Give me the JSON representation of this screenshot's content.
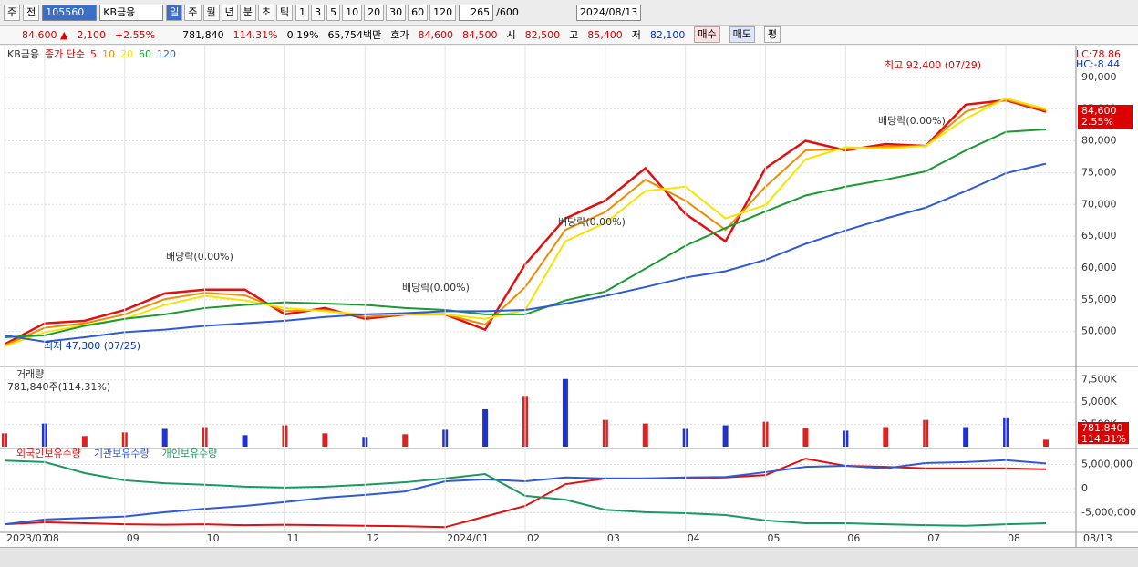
{
  "toolbar": {
    "market": "주",
    "prev": "전",
    "code": "105560",
    "name": "KB금융",
    "periods": [
      "일",
      "주",
      "월",
      "년",
      "분",
      "초",
      "틱"
    ],
    "minutes": [
      "1",
      "3",
      "5",
      "10",
      "20",
      "30",
      "60",
      "120"
    ],
    "count": "265",
    "max": "/600",
    "date": "2024/08/13"
  },
  "quote": {
    "price": "84,600 ▲",
    "change": "2,100",
    "rate": "+2.55%",
    "volume": "781,840",
    "vol_ratio": "114.31%",
    "turnover": "0.19%",
    "amount": "65,754백만",
    "ask_label": "호가",
    "ask": "84,600",
    "bid": "84,500",
    "open_label": "시",
    "open": "82,500",
    "high_label": "고",
    "high": "85,400",
    "low_label": "저",
    "low": "82,100",
    "buy": "매수",
    "sell": "매도",
    "avg": "평"
  },
  "axis_end": "08/13",
  "chart_data": [
    {
      "type": "line",
      "name": "KB금융",
      "method": "종가 단순",
      "categories": [
        "2023/07",
        "08",
        null,
        "09",
        null,
        "10",
        null,
        "11",
        null,
        "12",
        null,
        "2024/01",
        null,
        "02",
        null,
        "03",
        null,
        "04",
        null,
        "05",
        null,
        "06",
        null,
        "07",
        null,
        "08",
        null
      ],
      "series": [
        {
          "name": "5",
          "color": "#e01010",
          "values": [
            48000,
            51300,
            51700,
            53400,
            56000,
            56600,
            56600,
            52700,
            53700,
            52000,
            52700,
            52700,
            50300,
            60600,
            67800,
            70600,
            75700,
            68500,
            64200,
            75700,
            80000,
            78500,
            79500,
            79200,
            85700,
            86400,
            84600
          ]
        },
        {
          "name": "10",
          "color": "#f08a00",
          "values": [
            47800,
            50600,
            51300,
            52700,
            55100,
            56100,
            55700,
            53200,
            53400,
            52300,
            52700,
            52700,
            51100,
            57000,
            66000,
            68800,
            73900,
            70600,
            66000,
            72800,
            78500,
            78700,
            79100,
            79200,
            84600,
            86500,
            84800
          ]
        },
        {
          "name": "20",
          "color": "#f4e600",
          "values": [
            47700,
            49900,
            51000,
            52000,
            54200,
            55600,
            54900,
            53700,
            53200,
            52700,
            52700,
            52700,
            52000,
            53400,
            64200,
            67100,
            72100,
            72800,
            67800,
            69900,
            77100,
            79000,
            78800,
            79200,
            83500,
            86700,
            85000
          ]
        },
        {
          "name": "60",
          "color": "#1a9a30",
          "values": [
            49100,
            49400,
            50900,
            52000,
            52700,
            53700,
            54200,
            54600,
            54400,
            54200,
            53700,
            53400,
            52700,
            52700,
            54900,
            56300,
            59900,
            63500,
            66300,
            68900,
            71400,
            72800,
            73900,
            75200,
            78500,
            81400,
            81800
          ]
        },
        {
          "name": "120",
          "color": "#2e5ad8",
          "values": [
            49400,
            48400,
            49100,
            49900,
            50300,
            50900,
            51300,
            51700,
            52300,
            52700,
            52900,
            53200,
            53200,
            53400,
            54400,
            55600,
            57000,
            58500,
            59500,
            61300,
            63800,
            65900,
            67800,
            69500,
            72100,
            74900,
            76400
          ]
        }
      ],
      "ylim": [
        44800,
        94700
      ],
      "yticks": [
        {
          "value": 90000,
          "label": "90,000"
        },
        {
          "value": 85000,
          "label": "85,000"
        },
        {
          "value": 80000,
          "label": "80,000"
        },
        {
          "value": 75000,
          "label": "75,000"
        },
        {
          "value": 70000,
          "label": "70,000"
        },
        {
          "value": 65000,
          "label": "65,000"
        },
        {
          "value": 60000,
          "label": "60,000"
        },
        {
          "value": 55000,
          "label": "55,000"
        },
        {
          "value": 50000,
          "label": "50,000"
        }
      ],
      "grid": true,
      "annotations": [
        "최고 92,400 (07/29)",
        "최저 47,300 (07/25)",
        "배당락(0.00%)",
        "배당락(0.00%)",
        "배당락(0.00%)",
        "배당락(0.00%)"
      ],
      "right_labels": {
        "lc": "LC:78.86",
        "hc": "HC:-8.44",
        "last": "84,600",
        "rate": "2.55%"
      }
    },
    {
      "type": "bar",
      "name": "거래량",
      "info": "781,840주(114.31%)",
      "values": [
        1500000,
        2600000,
        1200000,
        1600000,
        2000000,
        2200000,
        1300000,
        2400000,
        1500000,
        1100000,
        1400000,
        1900000,
        4200000,
        5700000,
        7600000,
        3000000,
        2600000,
        2000000,
        2400000,
        2800000,
        2100000,
        1800000,
        2200000,
        3000000,
        2200000,
        3300000,
        781840
      ],
      "colors": [
        "#d22",
        "#23c",
        "#d22",
        "#d22",
        "#23c",
        "#d22",
        "#23c",
        "#d22",
        "#d22",
        "#23c",
        "#d22",
        "#23c",
        "#23c",
        "#d22",
        "#23c",
        "#d22",
        "#d22",
        "#23c",
        "#23c",
        "#d22",
        "#d22",
        "#23c",
        "#d22",
        "#d22",
        "#23c",
        "#23c",
        "#d22"
      ],
      "ylim": [
        0,
        8700000
      ],
      "yticks": [
        {
          "value": 7500000,
          "label": "7,500K"
        },
        {
          "value": 5000000,
          "label": "5,000K"
        },
        {
          "value": 2500000,
          "label": "2,500K"
        }
      ],
      "box": {
        "value": "781,840",
        "ratio": "114.31%"
      }
    },
    {
      "type": "line",
      "series": [
        {
          "name": "외국인보유수량",
          "color": "#e01010",
          "values": [
            -7400000,
            -7000000,
            -7200000,
            -7400000,
            -7500000,
            -7400000,
            -7600000,
            -7500000,
            -7600000,
            -7700000,
            -7800000,
            -8000000,
            -5800000,
            -3600000,
            900000,
            2100000,
            2100000,
            2100000,
            2300000,
            2800000,
            6200000,
            4700000,
            4500000,
            4200000,
            4200000,
            4200000,
            4000000
          ]
        },
        {
          "name": "기관보유수량",
          "color": "#2e5ad8",
          "values": [
            -7400000,
            -6400000,
            -6100000,
            -5800000,
            -4900000,
            -4200000,
            -3600000,
            -2800000,
            -1900000,
            -1300000,
            -600000,
            1500000,
            1900000,
            1500000,
            2300000,
            2100000,
            2100000,
            2300000,
            2400000,
            3400000,
            4500000,
            4700000,
            4200000,
            5300000,
            5500000,
            5900000,
            5200000
          ]
        },
        {
          "name": "개인보유수량",
          "color": "#1a9a60",
          "values": [
            5800000,
            5500000,
            3200000,
            1700000,
            1100000,
            800000,
            400000,
            200000,
            400000,
            800000,
            1300000,
            2100000,
            3000000,
            -1500000,
            -2300000,
            -4400000,
            -4900000,
            -5100000,
            -5500000,
            -6600000,
            -7200000,
            -7200000,
            -7400000,
            -7600000,
            -7700000,
            -7400000,
            -7200000
          ]
        }
      ],
      "ylim": [
        -8700000,
        8300000
      ],
      "yticks": [
        {
          "value": 5000000,
          "label": "5,000,000"
        },
        0,
        {
          "value": -5000000,
          "label": "-5,000,000"
        }
      ]
    }
  ]
}
